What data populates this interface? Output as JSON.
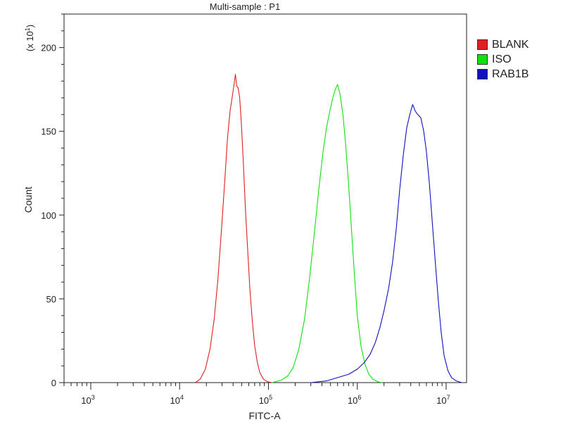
{
  "chart_data": {
    "type": "line",
    "title": "Multi-sample : P1",
    "xlabel": "FITC-A",
    "ylabel": "Count",
    "y_scale_note": "(x 10",
    "y_scale_exp": "1",
    "x_scale": "log",
    "xlim": [
      500,
      17000000
    ],
    "ylim": [
      0,
      220
    ],
    "x_ticks": [
      {
        "value": 1000,
        "base": "10",
        "exp": "3"
      },
      {
        "value": 10000,
        "base": "10",
        "exp": "4"
      },
      {
        "value": 100000,
        "base": "10",
        "exp": "5"
      },
      {
        "value": 1000000,
        "base": "10",
        "exp": "6"
      },
      {
        "value": 10000000,
        "base": "10",
        "exp": "7"
      }
    ],
    "y_ticks": [
      0,
      50,
      100,
      150,
      200
    ],
    "grid": false,
    "legend_position": "right-top",
    "series": [
      {
        "name": "BLANK",
        "color": "#e02020",
        "points": [
          [
            15000,
            0
          ],
          [
            17000,
            2
          ],
          [
            19500,
            8
          ],
          [
            22000,
            20
          ],
          [
            24500,
            38
          ],
          [
            27000,
            62
          ],
          [
            29500,
            90
          ],
          [
            32000,
            118
          ],
          [
            34500,
            145
          ],
          [
            37000,
            162
          ],
          [
            39500,
            172
          ],
          [
            41000,
            178
          ],
          [
            42500,
            184
          ],
          [
            44000,
            177
          ],
          [
            45500,
            176
          ],
          [
            47500,
            170
          ],
          [
            49500,
            155
          ],
          [
            52000,
            133
          ],
          [
            55000,
            104
          ],
          [
            58500,
            78
          ],
          [
            62000,
            55
          ],
          [
            66000,
            36
          ],
          [
            70000,
            22
          ],
          [
            75000,
            12
          ],
          [
            80000,
            6
          ],
          [
            88000,
            2
          ],
          [
            98000,
            0.5
          ],
          [
            110000,
            0
          ]
        ]
      },
      {
        "name": "ISO",
        "color": "#10e010",
        "points": [
          [
            110000,
            0
          ],
          [
            140000,
            1.5
          ],
          [
            165000,
            4
          ],
          [
            190000,
            9
          ],
          [
            220000,
            20
          ],
          [
            255000,
            38
          ],
          [
            290000,
            62
          ],
          [
            330000,
            90
          ],
          [
            370000,
            116
          ],
          [
            410000,
            137
          ],
          [
            450000,
            152
          ],
          [
            490000,
            162
          ],
          [
            530000,
            170
          ],
          [
            565000,
            175
          ],
          [
            600000,
            178
          ],
          [
            640000,
            172
          ],
          [
            690000,
            160
          ],
          [
            740000,
            142
          ],
          [
            800000,
            118
          ],
          [
            860000,
            92
          ],
          [
            930000,
            64
          ],
          [
            1000000,
            40
          ],
          [
            1100000,
            22
          ],
          [
            1220000,
            11
          ],
          [
            1350000,
            5
          ],
          [
            1500000,
            2
          ],
          [
            1700000,
            0.5
          ],
          [
            1900000,
            0
          ]
        ]
      },
      {
        "name": "RAB1B",
        "color": "#1010c0",
        "points": [
          [
            300000,
            0
          ],
          [
            450000,
            1
          ],
          [
            600000,
            3
          ],
          [
            800000,
            5
          ],
          [
            1000000,
            8
          ],
          [
            1200000,
            12
          ],
          [
            1400000,
            17
          ],
          [
            1600000,
            24
          ],
          [
            1800000,
            33
          ],
          [
            2000000,
            43
          ],
          [
            2250000,
            56
          ],
          [
            2500000,
            72
          ],
          [
            2750000,
            92
          ],
          [
            3000000,
            115
          ],
          [
            3300000,
            136
          ],
          [
            3600000,
            152
          ],
          [
            3900000,
            160
          ],
          [
            4200000,
            166
          ],
          [
            4500000,
            162
          ],
          [
            4800000,
            160
          ],
          [
            5200000,
            158
          ],
          [
            5600000,
            150
          ],
          [
            6000000,
            138
          ],
          [
            6500000,
            118
          ],
          [
            7000000,
            95
          ],
          [
            7600000,
            70
          ],
          [
            8200000,
            48
          ],
          [
            8800000,
            30
          ],
          [
            9500000,
            16
          ],
          [
            10500000,
            7
          ],
          [
            11500000,
            3
          ],
          [
            13000000,
            1
          ],
          [
            15000000,
            0
          ]
        ]
      }
    ]
  }
}
